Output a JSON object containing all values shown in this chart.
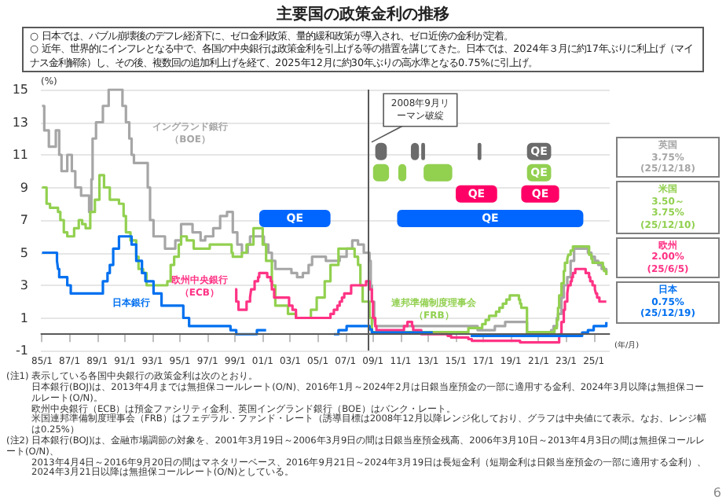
{
  "chart_data": {
    "type": "step",
    "title": "主要国の政策金利の推移",
    "subtitle": "○ 日本では、バブル崩壊後のデフレ経済下に、ゼロ金利政策、量的緩和政策が導入され、ゼロ近傍の金利が定着。\n○ 近年、世界的にインフレとなる中で、各国の中央銀行は政策金利を引上げる等の措置を講じてきた。日本では、2024年３月に約17年ぶりに利上げ（マイナス金利解除）し、その後、複数回の追加利上げを経て、2025年12月に約30年ぶりの高水準となる0.75%に引上げ。",
    "ylabel": "(%)",
    "xlabel": "(年/月)",
    "xlim": [
      "1984-12",
      "2026-03"
    ],
    "xticks": [
      {
        "value": "1985-01",
        "label": "85/1"
      },
      {
        "value": "1987-01",
        "label": "87/1"
      },
      {
        "value": "1989-01",
        "label": "89/1"
      },
      {
        "value": "1991-01",
        "label": "91/1"
      },
      {
        "value": "1993-01",
        "label": "93/1"
      },
      {
        "value": "1995-01",
        "label": "95/1"
      },
      {
        "value": "1997-01",
        "label": "97/1"
      },
      {
        "value": "1999-01",
        "label": "99/1"
      },
      {
        "value": "2001-01",
        "label": "01/1"
      },
      {
        "value": "2003-01",
        "label": "03/1"
      },
      {
        "value": "2005-01",
        "label": "05/1"
      },
      {
        "value": "2007-01",
        "label": "07/1"
      },
      {
        "value": "2009-01",
        "label": "09/1"
      },
      {
        "value": "2011-01",
        "label": "11/1"
      },
      {
        "value": "2013-01",
        "label": "13/1"
      },
      {
        "value": "2015-01",
        "label": "15/1"
      },
      {
        "value": "2017-01",
        "label": "17/1"
      },
      {
        "value": "2019-01",
        "label": "19/1"
      },
      {
        "value": "2021-01",
        "label": "21/1"
      },
      {
        "value": "2023-01",
        "label": "23/1"
      },
      {
        "value": "2025-01",
        "label": "25/1"
      }
    ],
    "ylim": [
      -1,
      15
    ],
    "yticks": [
      -1,
      1,
      3,
      5,
      7,
      9,
      11,
      13,
      15
    ],
    "grid": "y",
    "series": [
      {
        "name": "イングランド銀行（BOE）",
        "color": "#a6a6a6",
        "x": [
          "1985-01",
          "1985-03",
          "1985-07",
          "1986-01",
          "1986-04",
          "1986-06",
          "1986-11",
          "1987-03",
          "1987-06",
          "1987-11",
          "1988-06",
          "1988-08",
          "1988-09",
          "1988-12",
          "1989-06",
          "1989-11",
          "1990-11",
          "1991-02",
          "1991-05",
          "1991-07",
          "1991-09",
          "1992-09",
          "1992-11",
          "1993-02",
          "1993-12",
          "1994-09",
          "1995-02",
          "1995-12",
          "1996-07",
          "1996-11",
          "1997-06",
          "1997-12",
          "1998-06",
          "1998-11",
          "1999-03",
          "1999-07",
          "1999-12",
          "2000-02",
          "2001-02",
          "2001-06",
          "2001-09",
          "2001-12",
          "2003-02",
          "2003-07",
          "2003-12",
          "2004-05",
          "2004-08",
          "2005-08",
          "2006-08",
          "2007-02",
          "2007-07",
          "2007-12",
          "2008-05",
          "2008-10",
          "2008-11",
          "2008-12",
          "2009-02",
          "2009-03",
          "2016-08",
          "2017-11",
          "2018-08",
          "2020-03",
          "2021-12",
          "2022-02",
          "2022-05",
          "2022-06",
          "2022-09",
          "2022-11",
          "2023-02",
          "2023-05",
          "2023-08",
          "2024-08",
          "2024-11",
          "2025-02",
          "2025-05",
          "2025-08",
          "2025-12"
        ],
        "values": [
          14,
          12.5,
          11.5,
          12.5,
          11,
          10,
          11,
          10,
          9,
          8.5,
          7.5,
          9.5,
          12,
          13,
          14,
          15,
          14,
          13,
          12,
          11,
          10.5,
          9,
          7,
          6,
          5.25,
          5.75,
          6.75,
          6.25,
          5.75,
          6,
          6.5,
          7.25,
          7.5,
          6.25,
          5.5,
          5,
          5.5,
          6,
          5.5,
          5,
          4.5,
          4,
          3.75,
          3.5,
          3.75,
          4.25,
          4.75,
          4.5,
          4.75,
          5.25,
          5.75,
          5.5,
          5,
          4.5,
          3,
          2,
          1,
          0.5,
          0.25,
          0.5,
          0.75,
          0.1,
          0.25,
          0.5,
          1,
          1.25,
          2.25,
          3,
          3.5,
          4.5,
          5.25,
          5,
          4.75,
          4.5,
          4.25,
          4,
          3.75
        ]
      },
      {
        "name": "連邦準備制度理事会（FRB）",
        "color": "#92d050",
        "x": [
          "1985-01",
          "1985-05",
          "1985-08",
          "1986-03",
          "1986-05",
          "1986-08",
          "1986-11",
          "1987-05",
          "1987-09",
          "1987-12",
          "1988-03",
          "1988-07",
          "1988-11",
          "1989-03",
          "1989-07",
          "1989-12",
          "1990-08",
          "1990-12",
          "1991-02",
          "1991-06",
          "1991-11",
          "1992-01",
          "1992-05",
          "1992-08",
          "1994-02",
          "1994-05",
          "1994-08",
          "1994-12",
          "1995-02",
          "1995-07",
          "1996-01",
          "1997-03",
          "1998-10",
          "1998-11",
          "1999-07",
          "1999-11",
          "2000-05",
          "2001-01",
          "2001-04",
          "2001-09",
          "2001-12",
          "2002-11",
          "2003-06",
          "2004-07",
          "2004-12",
          "2005-07",
          "2005-12",
          "2006-07",
          "2007-09",
          "2007-12",
          "2008-02",
          "2008-04",
          "2008-10",
          "2008-12",
          "2015-12",
          "2016-12",
          "2017-03",
          "2017-06",
          "2017-12",
          "2018-03",
          "2018-06",
          "2018-09",
          "2018-12",
          "2019-08",
          "2019-09",
          "2019-10",
          "2020-03",
          "2022-03",
          "2022-05",
          "2022-06",
          "2022-07",
          "2022-09",
          "2022-11",
          "2022-12",
          "2023-02",
          "2023-03",
          "2023-05",
          "2023-07",
          "2024-09",
          "2024-11",
          "2024-12",
          "2025-09",
          "2025-10",
          "2025-12"
        ],
        "values": [
          9,
          8,
          7.75,
          7.5,
          7,
          6.25,
          6,
          6.5,
          7,
          6.75,
          6.5,
          7.5,
          8.25,
          9.75,
          9,
          8.25,
          8,
          7.25,
          6.25,
          5.75,
          4.75,
          4,
          3.75,
          3,
          3.25,
          4.25,
          4.75,
          5.5,
          6,
          5.75,
          5.25,
          5.5,
          5,
          4.75,
          5,
          5.5,
          6.5,
          5.5,
          4.5,
          3,
          1.75,
          1.25,
          1,
          1.5,
          2.25,
          3.25,
          4.25,
          5.25,
          4.75,
          4.25,
          3,
          2,
          1,
          0.125,
          0.375,
          0.625,
          0.875,
          1.125,
          1.375,
          1.625,
          1.875,
          2.125,
          2.375,
          2.125,
          1.875,
          1.625,
          0.125,
          0.375,
          0.875,
          1.625,
          2.375,
          3.125,
          3.875,
          4.375,
          4.625,
          4.875,
          5.125,
          5.375,
          4.875,
          4.625,
          4.375,
          4.125,
          3.875,
          3.625
        ]
      },
      {
        "name": "欧州中央銀行（ECB）",
        "color": "#ff3385",
        "x": [
          "1999-01",
          "1999-02",
          "1999-04",
          "1999-11",
          "2000-02",
          "2000-03",
          "2000-06",
          "2000-09",
          "2000-10",
          "2001-05",
          "2001-08",
          "2001-09",
          "2001-11",
          "2002-12",
          "2003-03",
          "2003-06",
          "2005-12",
          "2006-03",
          "2006-06",
          "2006-08",
          "2006-10",
          "2006-12",
          "2007-06",
          "2008-07",
          "2008-10",
          "2008-12",
          "2009-01",
          "2009-03",
          "2009-04",
          "2011-04",
          "2011-07",
          "2011-11",
          "2011-12",
          "2012-07",
          "2014-06",
          "2014-09",
          "2015-12",
          "2016-03",
          "2019-09",
          "2022-07",
          "2022-09",
          "2022-11",
          "2022-12",
          "2023-02",
          "2023-03",
          "2023-05",
          "2023-06",
          "2023-07",
          "2023-09",
          "2024-06",
          "2024-09",
          "2024-10",
          "2024-12",
          "2025-02",
          "2025-03",
          "2025-04",
          "2025-06",
          "2025-12"
        ],
        "values": [
          2.75,
          2,
          1.5,
          2,
          2.25,
          2.75,
          3.25,
          3.5,
          3.75,
          3.5,
          3.25,
          2.75,
          2.25,
          1.75,
          1.5,
          1,
          1.25,
          1.5,
          1.75,
          2,
          2.25,
          2.5,
          3,
          3.25,
          2.75,
          2,
          1,
          0.5,
          0.25,
          0.5,
          0.75,
          0.5,
          0.25,
          0,
          -0.1,
          -0.2,
          -0.3,
          -0.4,
          -0.5,
          0,
          0.75,
          1.5,
          2,
          2.5,
          3,
          3.25,
          3.5,
          3.75,
          4,
          3.75,
          3.5,
          3.25,
          3,
          2.75,
          2.5,
          2.25,
          2,
          2
        ]
      },
      {
        "name": "日本銀行",
        "color": "#0070f0",
        "x": [
          "1985-01",
          "1986-02",
          "1986-03",
          "1986-04",
          "1986-11",
          "1987-02",
          "1989-06",
          "1989-10",
          "1989-12",
          "1990-03",
          "1990-08",
          "1991-07",
          "1991-11",
          "1992-04",
          "1992-07",
          "1993-02",
          "1993-09",
          "1995-04",
          "1995-09",
          "1998-09",
          "1999-02",
          "2000-08",
          "2001-03",
          "2001-04",
          "2006-03",
          "2006-07",
          "2007-02",
          "2008-10",
          "2008-12",
          "2013-04",
          "2013-05",
          "2016-02",
          "2024-03",
          "2024-08",
          "2025-01",
          "2025-12"
        ],
        "values": [
          5,
          4.5,
          4,
          3.5,
          3,
          2.5,
          3.25,
          3.75,
          4.25,
          5.25,
          6,
          5.5,
          4.5,
          3.75,
          3.25,
          2.5,
          1.75,
          1,
          0.5,
          0.25,
          0,
          0.25,
          0.25,
          null,
          0,
          0.25,
          0.5,
          0.3,
          0.1,
          0.1,
          null,
          -0.1,
          0.1,
          0.25,
          0.5,
          0.75
        ]
      }
    ],
    "ref_lines": [
      {
        "axis": "y",
        "value": 0,
        "color": "#595959"
      },
      {
        "axis": "x",
        "value": "2008-09",
        "label": "2008年9月リーマン破綻",
        "color": "#595959"
      }
    ],
    "bands": [
      {
        "axis": "x",
        "from": "2009-03",
        "to": "2010-01",
        "color": "#6b6b6b"
      },
      {
        "axis": "x",
        "from": "2011-10",
        "to": "2012-05",
        "color": "#6b6b6b"
      },
      {
        "axis": "x",
        "from": "2012-07",
        "to": "2012-10",
        "color": "#6b6b6b"
      },
      {
        "axis": "x",
        "from": "2016-08",
        "to": "2016-09",
        "color": "#6b6b6b"
      },
      {
        "axis": "x",
        "from": "2020-03",
        "to": "2021-12",
        "label": "QE",
        "color": "#6b6b6b"
      },
      {
        "axis": "x",
        "from": "2009-01",
        "to": "2010-03",
        "color": "#92d050"
      },
      {
        "axis": "x",
        "from": "2010-11",
        "to": "2011-06",
        "color": "#92d050"
      },
      {
        "axis": "x",
        "from": "2012-09",
        "to": "2014-10",
        "color": "#92d050"
      },
      {
        "axis": "x",
        "from": "2020-03",
        "to": "2021-12",
        "label": "QE",
        "color": "#92d050"
      },
      {
        "axis": "x",
        "from": "2015-01",
        "to": "2018-01",
        "label": "QE",
        "color": "#ff0066"
      },
      {
        "axis": "x",
        "from": "2019-10",
        "to": "2022-07",
        "label": "QE",
        "color": "#ff0066"
      },
      {
        "axis": "x",
        "from": "2000-10",
        "to": "2005-12",
        "label": "QE",
        "color": "#0066ff"
      },
      {
        "axis": "x",
        "from": "2010-10",
        "to": "2024-04",
        "label": "QE",
        "color": "#0066ff"
      }
    ],
    "annotations": [
      "英国\n3.75%\n(25/12/18)",
      "米国\n3.50～\n3.75%\n(25/12/10)",
      "欧州\n2.00%\n(25/6/5)",
      "日本\n0.75%\n(25/12/19)",
      "(注1) 表示している各国中央銀行の政策金利は次のとおり。",
      "日本銀行(BOJ)は、2013年4月までは無担保コールレート(O/N)、2016年1月～2024年2月は日銀当座預金の一部に適用する金利、2024年3月以降は無担保コールレート(O/N)。",
      "欧州中央銀行（ECB）は預金ファシリティ金利、英国イングランド銀行（BOE）はバンク・レート。",
      "米国連邦準備制度理事会（FRB）はフェデラル・ファンド・レート（誘導目標は2008年12月以降レンジ化しており、グラフは中央値にて表示。なお、レンジ幅は0.25%）",
      "(注2) 日本銀行(BOJ)は、金融市場調節の対象を、2001年3月19日～2006年3月9日の間は日銀当座預金残高、2006年3月10日～2013年4月3日の間は無担保コールレート(O/N)、",
      "2013年4月4日～2016年9月20日の間はマネタリーベース、2016年9月21日～2024年3月19日は長短金利（短期金利は日銀当座預金の一部に適用する金利）、2024年3月21日以降は無担保コールレート(O/N)としている。",
      "6"
    ]
  }
}
